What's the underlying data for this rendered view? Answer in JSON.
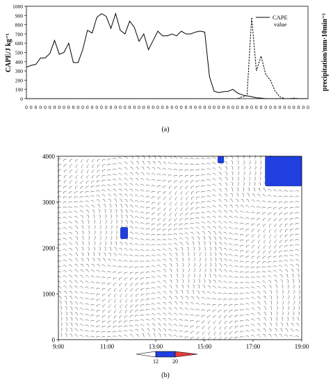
{
  "chart_data": [
    {
      "type": "line",
      "panel_label": "(a)",
      "ylabel_left": "CAPE/J kg⁻¹",
      "ylabel_right": "precipitation/mm·10min⁻¹",
      "y_ticks": [
        "0",
        "100",
        "200",
        "300",
        "400",
        "500",
        "600",
        "700",
        "800",
        "900",
        "1000"
      ],
      "ylim": [
        0,
        1000
      ],
      "x_tick_labels": [
        "0",
        "0",
        "0",
        "0",
        "0",
        "0",
        "0",
        "0",
        "0",
        "0",
        "0",
        "0",
        "0",
        "0",
        "0",
        "0",
        "0",
        "0",
        "0",
        "0",
        "0",
        "0",
        "0",
        "0",
        "0",
        "0",
        "0",
        "0",
        "0",
        "0",
        "0",
        "0",
        "0",
        "0",
        "0",
        "0",
        "0",
        "0",
        "0",
        "0",
        "0",
        "0",
        "0",
        "0",
        "0",
        "0",
        "0",
        "0",
        "0",
        "0",
        "0",
        "0",
        "0",
        "0",
        "0",
        "0",
        "0",
        "0",
        "0",
        "0",
        "0"
      ],
      "legend": {
        "label_line1": "CAPE",
        "label_line2": "value",
        "position": "top-right"
      },
      "series": [
        {
          "name": "CAPE value",
          "style": "solid",
          "values": [
            340,
            360,
            370,
            440,
            440,
            490,
            630,
            480,
            500,
            600,
            390,
            390,
            530,
            740,
            710,
            880,
            920,
            890,
            760,
            920,
            740,
            700,
            840,
            770,
            620,
            700,
            530,
            630,
            730,
            680,
            680,
            700,
            680,
            730,
            700,
            700,
            720,
            730,
            720,
            240,
            80,
            65,
            75,
            80,
            100,
            60,
            40,
            30,
            20,
            10,
            5,
            0,
            0,
            0,
            0,
            0,
            0,
            0,
            0,
            0,
            0
          ]
        },
        {
          "style": "dashed",
          "values": [
            0,
            0,
            0,
            0,
            0,
            0,
            0,
            0,
            0,
            0,
            0,
            0,
            0,
            0,
            0,
            0,
            0,
            0,
            0,
            0,
            0,
            0,
            0,
            0,
            0,
            0,
            0,
            0,
            0,
            0,
            0,
            0,
            0,
            0,
            0,
            0,
            0,
            0,
            0,
            0,
            0,
            0,
            0,
            0,
            0,
            0,
            20,
            30,
            880,
            300,
            460,
            260,
            200,
            80,
            20,
            0,
            0,
            5,
            0,
            0,
            0
          ]
        }
      ]
    },
    {
      "type": "heatmap",
      "panel_label": "(b)",
      "xlim_hours": [
        9,
        19
      ],
      "x_ticks": [
        "9:00",
        "11:00",
        "13:00",
        "15:00",
        "17:00",
        "19:00"
      ],
      "y_ticks": [
        "0",
        "1000",
        "2000",
        "3000",
        "4000"
      ],
      "ylim": [
        0,
        4000
      ],
      "colorbar": {
        "labels": [
          "12",
          "20"
        ],
        "colors": [
          "#ffffff",
          "#1f3fe0",
          "#e83a3a"
        ]
      },
      "shaded_regions": [
        {
          "x_hours": [
            11.55,
            11.85
          ],
          "y": [
            2200,
            2450
          ],
          "color": "#1f3fe0"
        },
        {
          "x_hours": [
            15.55,
            15.8
          ],
          "y": [
            3850,
            4000
          ],
          "color": "#1f3fe0"
        },
        {
          "x_hours": [
            17.5,
            19.0
          ],
          "y": [
            3350,
            4000
          ],
          "color": "#1f3fe0"
        }
      ]
    }
  ]
}
